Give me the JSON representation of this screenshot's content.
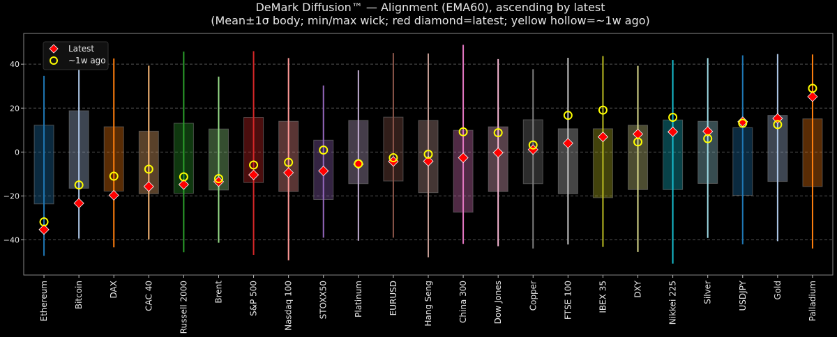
{
  "chart_data": {
    "type": "box-range",
    "title": "DeMark Diffusion™ — Alignment (EMA60), ascending by latest",
    "subtitle": "(Mean±1σ body; min/max wick; red diamond=latest; yellow hollow=~1w ago)",
    "xlabel": "",
    "ylabel": "",
    "ylim": [
      -56,
      54
    ],
    "yticks": [
      -40,
      -20,
      0,
      20,
      40
    ],
    "grid": "horizontal dashed",
    "legend": {
      "position": "top-left",
      "entries": [
        "Latest",
        "~1w ago"
      ]
    },
    "marker_colors": {
      "latest": "#ff0000",
      "week_ago": "#ffff00"
    },
    "categories": [
      "Ethereum",
      "Bitcoin",
      "DAX",
      "CAC 40",
      "Russell 2000",
      "Brent",
      "S&P 500",
      "Nasdaq 100",
      "STOXX50",
      "Platinum",
      "EURUSD",
      "Hang Seng",
      "China 300",
      "Dow Jones",
      "Copper",
      "FTSE 100",
      "IBEX 35",
      "DXY",
      "Nikkei 225",
      "Silver",
      "USDJPY",
      "Gold",
      "Palladium"
    ],
    "colors": [
      "#1f77b4",
      "#aec7e8",
      "#ff7f0e",
      "#ffbb78",
      "#2ca02c",
      "#98df8a",
      "#d62728",
      "#ff9896",
      "#9467bd",
      "#c5b0d5",
      "#8c564b",
      "#c49c94",
      "#e377c2",
      "#f7b6d2",
      "#7f7f7f",
      "#c7c7c7",
      "#bcbd22",
      "#dbdb8d",
      "#17becf",
      "#9edae5",
      "#1f77b4",
      "#aec7e8",
      "#ff7f0e"
    ],
    "min": [
      -47.3,
      -39.4,
      -43.4,
      -39.8,
      -45.6,
      -41.3,
      -46.8,
      -49.3,
      -39.0,
      -40.4,
      -39.0,
      -47.9,
      -41.8,
      -42.9,
      -43.9,
      -42.1,
      -43.2,
      -45.5,
      -50.8,
      -39.1,
      -42.0,
      -40.6,
      -43.9
    ],
    "max": [
      34.7,
      47.0,
      42.6,
      39.3,
      45.7,
      34.3,
      45.9,
      42.8,
      30.3,
      37.2,
      45.1,
      44.9,
      48.8,
      42.3,
      37.7,
      42.9,
      43.7,
      39.2,
      41.9,
      42.8,
      44.0,
      44.6,
      44.4
    ],
    "body_low": [
      -23.6,
      -16.5,
      -17.8,
      -19.0,
      -18.8,
      -17.3,
      -13.9,
      -18.0,
      -21.6,
      -14.4,
      -13.2,
      -18.5,
      -27.4,
      -18.0,
      -14.4,
      -19.0,
      -20.8,
      -17.1,
      -17.1,
      -14.3,
      -19.7,
      -13.4,
      -15.7
    ],
    "body_high": [
      12.2,
      18.8,
      11.5,
      9.5,
      13.1,
      10.5,
      15.8,
      14.0,
      5.4,
      14.4,
      15.9,
      14.4,
      9.9,
      11.5,
      14.7,
      10.6,
      10.6,
      12.2,
      14.6,
      14.0,
      11.1,
      16.7,
      15.1
    ],
    "latest": [
      -35.3,
      -23.3,
      -19.7,
      -15.7,
      -14.8,
      -13.5,
      -10.4,
      -9.4,
      -8.6,
      -5.5,
      -4.3,
      -4.2,
      -2.6,
      -0.3,
      1.1,
      4.0,
      6.9,
      8.2,
      9.2,
      9.4,
      13.8,
      15.3,
      25.2
    ],
    "week_ago": [
      -31.8,
      -15.0,
      -11.0,
      -7.8,
      -11.3,
      -12.1,
      -5.9,
      -4.7,
      0.9,
      -5.3,
      -2.6,
      -1.0,
      9.2,
      8.8,
      3.2,
      16.7,
      19.1,
      4.6,
      15.8,
      6.1,
      13.1,
      12.5,
      29.0
    ]
  }
}
